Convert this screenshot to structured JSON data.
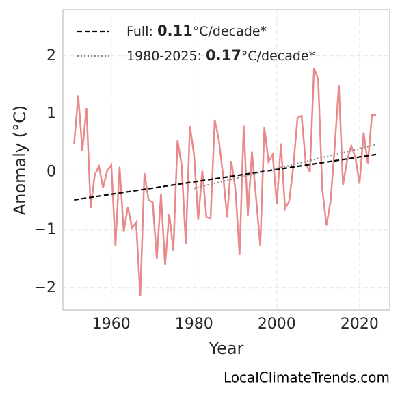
{
  "chart_data": {
    "type": "line",
    "x_label": "Year",
    "y_label": "Anomaly (°C)",
    "source": "LocalClimateTrends.com",
    "xlim": [
      1948.3,
      2027.3
    ],
    "xticks": [
      1960,
      1980,
      2000,
      2020
    ],
    "ylim": [
      -2.38,
      2.8
    ],
    "yticks": [
      {
        "value": -2,
        "label": "−2"
      },
      {
        "value": -1,
        "label": "−1"
      },
      0,
      1,
      2
    ],
    "grid": true,
    "x": [
      1951,
      1952,
      1953,
      1954,
      1955,
      1956,
      1957,
      1958,
      1959,
      1960,
      1961,
      1962,
      1963,
      1964,
      1965,
      1966,
      1967,
      1968,
      1969,
      1970,
      1971,
      1972,
      1973,
      1974,
      1975,
      1976,
      1977,
      1978,
      1979,
      1980,
      1981,
      1982,
      1983,
      1984,
      1985,
      1986,
      1987,
      1988,
      1989,
      1990,
      1991,
      1992,
      1993,
      1994,
      1995,
      1996,
      1997,
      1998,
      1999,
      2000,
      2001,
      2002,
      2003,
      2004,
      2005,
      2006,
      2007,
      2008,
      2009,
      2010,
      2011,
      2012,
      2013,
      2014,
      2015,
      2016,
      2017,
      2018,
      2019,
      2020,
      2021,
      2022,
      2023,
      2024
    ],
    "values": [
      0.48,
      1.32,
      0.37,
      1.1,
      -0.62,
      -0.05,
      0.1,
      -0.27,
      0.02,
      0.12,
      -1.27,
      0.09,
      -1.03,
      -0.6,
      -0.96,
      -0.87,
      -2.14,
      -0.02,
      -0.48,
      -0.52,
      -1.5,
      -0.38,
      -1.6,
      -0.72,
      -1.35,
      0.55,
      0.12,
      -1.24,
      0.79,
      0.3,
      -0.82,
      0.02,
      -0.78,
      -0.8,
      0.9,
      0.55,
      -0.05,
      -0.78,
      0.19,
      -0.3,
      -1.43,
      0.8,
      -0.75,
      0.35,
      -0.45,
      -1.27,
      0.77,
      0.18,
      0.3,
      -0.55,
      0.49,
      -0.63,
      -0.5,
      0.1,
      0.93,
      0.97,
      0.15,
      0.0,
      1.79,
      1.6,
      -0.3,
      -0.92,
      -0.5,
      0.43,
      1.5,
      -0.22,
      0.2,
      0.45,
      0.25,
      -0.2,
      0.68,
      0.15,
      0.98,
      0.98
    ],
    "color": "#e8898a",
    "trends": [
      {
        "prefix": "Full: ",
        "rate": 0.11,
        "suffix": "°C/decade*",
        "color": "#000000",
        "style": "dashed",
        "x": [
          1951,
          2024
        ],
        "values": [
          -0.48,
          0.3
        ]
      },
      {
        "prefix": "1980-2025: ",
        "rate": 0.17,
        "suffix": "°C/decade*",
        "color": "#888888",
        "style": "dotted",
        "x": [
          1980,
          2024
        ],
        "values": [
          -0.28,
          0.47
        ]
      }
    ],
    "legend": "upper left"
  }
}
